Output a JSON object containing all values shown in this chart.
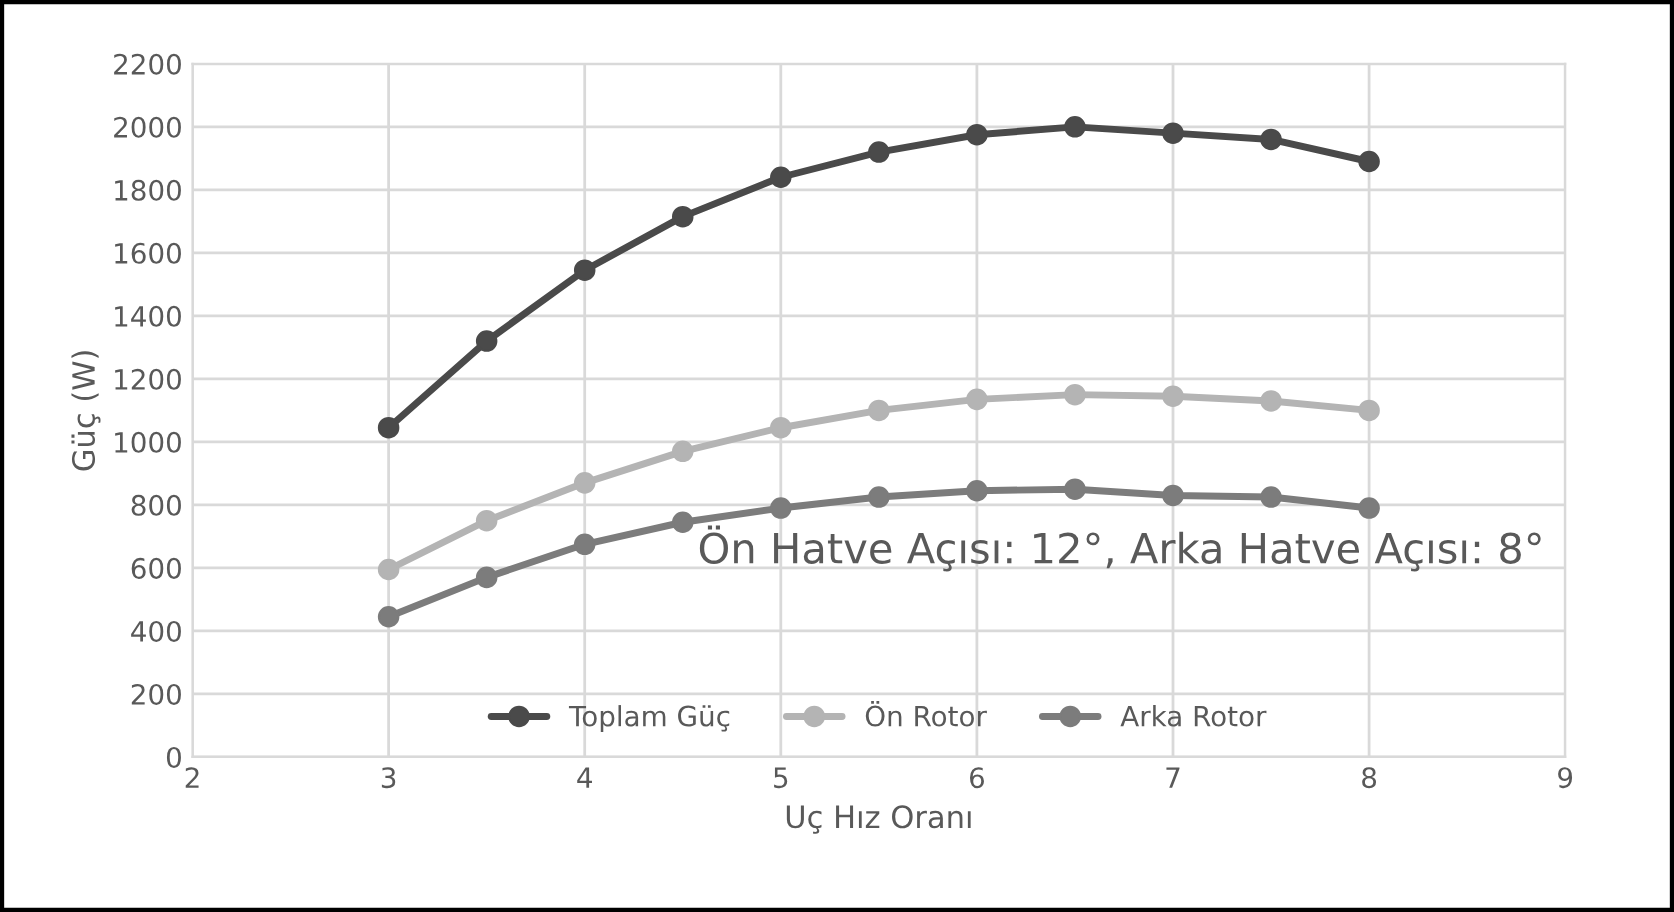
{
  "chart_data": {
    "type": "line",
    "xlabel": "Uç Hız Oranı",
    "ylabel": "Güç (W)",
    "x": [
      3,
      3.5,
      4,
      4.5,
      5,
      5.5,
      6,
      6.5,
      7,
      7.5,
      8
    ],
    "series": [
      {
        "name": "Toplam Güç",
        "color": "#4a4a4a",
        "values": [
          1045,
          1320,
          1545,
          1715,
          1840,
          1920,
          1975,
          2000,
          1980,
          1960,
          1890
        ]
      },
      {
        "name": "Ön Rotor",
        "color": "#b4b4b4",
        "values": [
          595,
          750,
          870,
          970,
          1045,
          1100,
          1135,
          1150,
          1145,
          1130,
          1100
        ]
      },
      {
        "name": "Arka Rotor",
        "color": "#7c7c7c",
        "values": [
          445,
          570,
          675,
          745,
          790,
          825,
          845,
          850,
          830,
          825,
          790
        ]
      }
    ],
    "xlim": [
      2,
      9
    ],
    "xticks": [
      2,
      3,
      4,
      5,
      6,
      7,
      8,
      9
    ],
    "ylim": [
      0,
      2200
    ],
    "yticks": [
      0,
      200,
      400,
      600,
      800,
      1000,
      1200,
      1400,
      1600,
      1800,
      2000,
      2200
    ],
    "annotations": [
      "Ön Hatve Açısı: 12°, Arka Hatve Açısı: 8°"
    ],
    "grid": true,
    "legend": "bottom",
    "marker": "circle",
    "line_style": "solid"
  }
}
